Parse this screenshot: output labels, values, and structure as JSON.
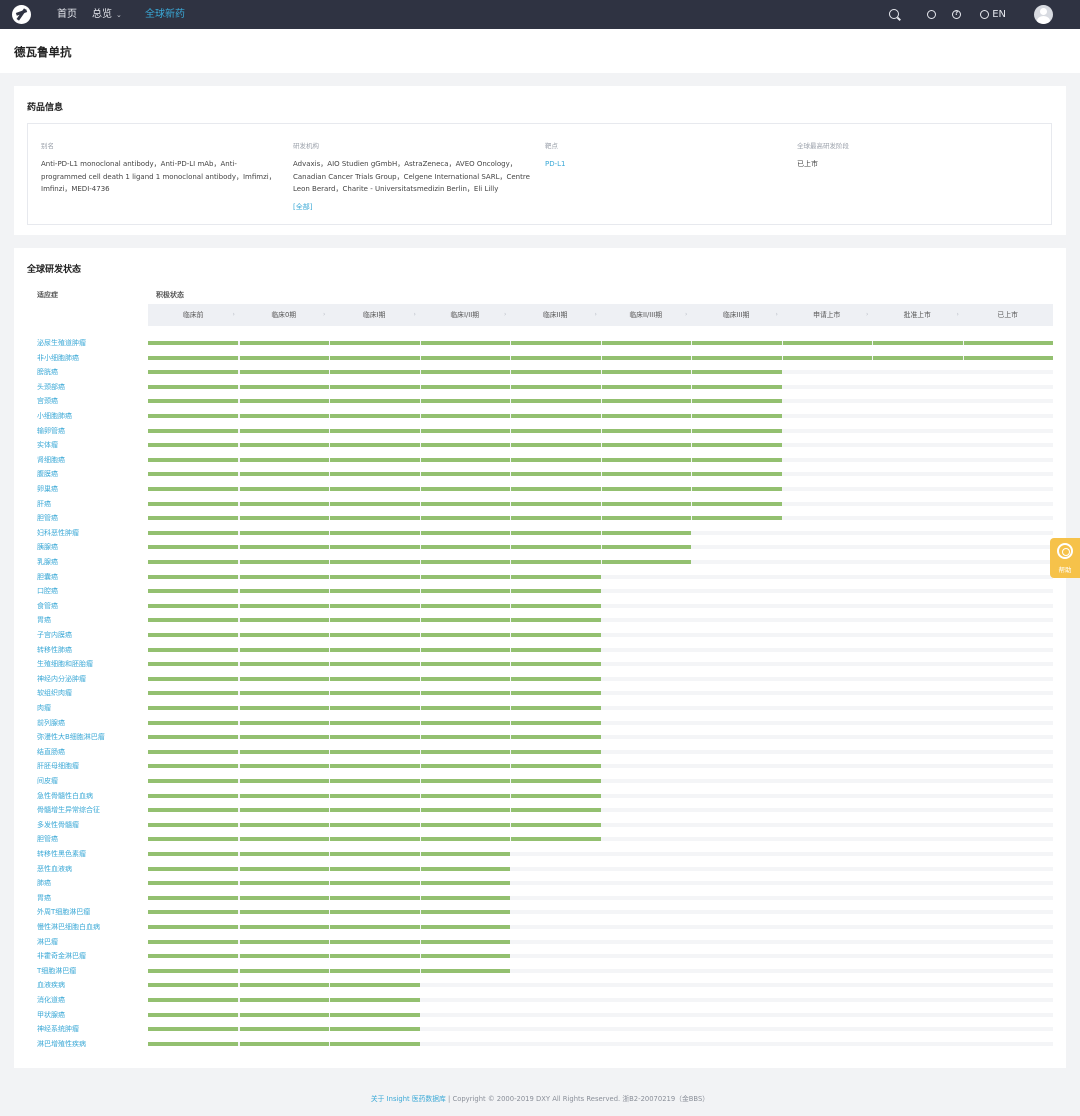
{
  "nav": {
    "home": "首页",
    "overview": "总览",
    "global_new_drugs": "全球新药",
    "lang": "EN"
  },
  "page_title": "德瓦鲁单抗",
  "drug_info": {
    "section_title": "药品信息",
    "alias_label": "别名",
    "alias_value": "Anti-PD-L1 monoclonal antibody，Anti-PD-LI mAb，Anti-programmed cell death 1 ligand 1 monoclonal antibody，Imfimzi，Imfinzi，MEDI-4736",
    "org_label": "研发机构",
    "org_value": "Advaxis，AIO Studien gGmbH，AstraZeneca，AVEO Oncology，Canadian Cancer Trials Group，Celgene International SARL，Centre Leon Berard，Charite - Universitatsmedizin Berlin，Eli Lilly",
    "org_more": "[全部]",
    "target_label": "靶点",
    "target_value": "PD-L1",
    "stage_label": "全球最高研发阶段",
    "stage_value": "已上市"
  },
  "status": {
    "section_title": "全球研发状态",
    "col_indication": "适应症",
    "col_status": "积极状态",
    "phases": [
      "临床前",
      "临床0期",
      "临床I期",
      "临床I/II期",
      "临床II期",
      "临床II/III期",
      "临床III期",
      "申请上市",
      "批准上市",
      "已上市"
    ],
    "rows": [
      {
        "name": "泌尿生殖道肿瘤",
        "stage": 10
      },
      {
        "name": "非小细胞肺癌",
        "stage": 10
      },
      {
        "name": "膀胱癌",
        "stage": 7
      },
      {
        "name": "头颈部癌",
        "stage": 7
      },
      {
        "name": "宫颈癌",
        "stage": 7
      },
      {
        "name": "小细胞肺癌",
        "stage": 7
      },
      {
        "name": "输卵管癌",
        "stage": 7
      },
      {
        "name": "实体瘤",
        "stage": 7
      },
      {
        "name": "肾细胞癌",
        "stage": 7
      },
      {
        "name": "腹膜癌",
        "stage": 7
      },
      {
        "name": "卵巢癌",
        "stage": 7
      },
      {
        "name": "肝癌",
        "stage": 7
      },
      {
        "name": "胆管癌",
        "stage": 7
      },
      {
        "name": "妇科恶性肿瘤",
        "stage": 6
      },
      {
        "name": "胰腺癌",
        "stage": 6
      },
      {
        "name": "乳腺癌",
        "stage": 6
      },
      {
        "name": "胆囊癌",
        "stage": 5
      },
      {
        "name": "口腔癌",
        "stage": 5
      },
      {
        "name": "食管癌",
        "stage": 5
      },
      {
        "name": "胃癌",
        "stage": 5
      },
      {
        "name": "子宫内膜癌",
        "stage": 5
      },
      {
        "name": "转移性肺癌",
        "stage": 5
      },
      {
        "name": "生殖细胞和胚胎瘤",
        "stage": 5
      },
      {
        "name": "神经内分泌肿瘤",
        "stage": 5
      },
      {
        "name": "软组织肉瘤",
        "stage": 5
      },
      {
        "name": "肉瘤",
        "stage": 5
      },
      {
        "name": "前列腺癌",
        "stage": 5
      },
      {
        "name": "弥漫性大B细胞淋巴瘤",
        "stage": 5
      },
      {
        "name": "结直肠癌",
        "stage": 5
      },
      {
        "name": "肝胚母细胞瘤",
        "stage": 5
      },
      {
        "name": "间皮瘤",
        "stage": 5
      },
      {
        "name": "急性骨髓性白血病",
        "stage": 5
      },
      {
        "name": "骨髓增生异常综合征",
        "stage": 5
      },
      {
        "name": "多发性骨髓瘤",
        "stage": 5
      },
      {
        "name": "胆管癌",
        "stage": 5
      },
      {
        "name": "转移性黑色素瘤",
        "stage": 4
      },
      {
        "name": "恶性血液病",
        "stage": 4
      },
      {
        "name": "肺癌",
        "stage": 4
      },
      {
        "name": "胃癌",
        "stage": 4
      },
      {
        "name": "外周T细胞淋巴瘤",
        "stage": 4
      },
      {
        "name": "慢性淋巴细胞白血病",
        "stage": 4
      },
      {
        "name": "淋巴瘤",
        "stage": 4
      },
      {
        "name": "非霍奇金淋巴瘤",
        "stage": 4
      },
      {
        "name": "T细胞淋巴瘤",
        "stage": 4
      },
      {
        "name": "血液疾病",
        "stage": 3
      },
      {
        "name": "消化道癌",
        "stage": 3
      },
      {
        "name": "甲状腺癌",
        "stage": 3
      },
      {
        "name": "神经系统肿瘤",
        "stage": 3
      },
      {
        "name": "淋巴增殖性疾病",
        "stage": 3
      }
    ]
  },
  "footer": {
    "about_link": "关于 Insight 医药数据库",
    "copyright": "Copyright © 2000-2019 DXY All Rights Reserved. 浙B2-20070219（金BBS）"
  },
  "help": {
    "label": "帮助"
  },
  "colors": {
    "nav_bg": "#2f3342",
    "accent": "#3aa8d6",
    "progress": "#93c070",
    "help": "#f6c24a"
  }
}
